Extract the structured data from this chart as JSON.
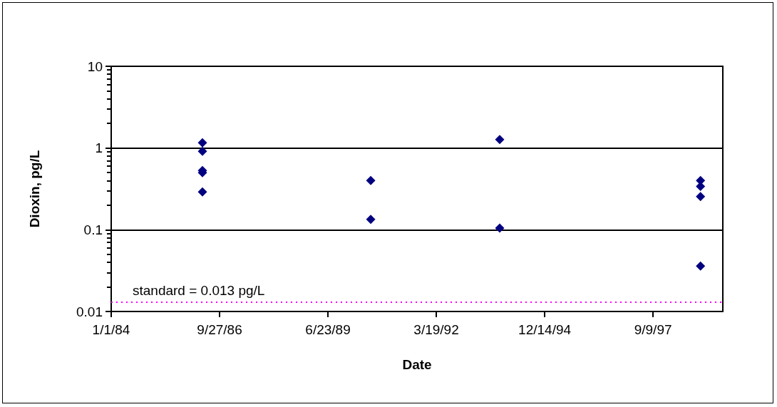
{
  "chart_data": {
    "type": "scatter",
    "xlabel": "Date",
    "ylabel": "Dioxin, pg/L",
    "x": [
      "1986-04-22",
      "1986-04-22",
      "1986-04-22",
      "1986-04-22",
      "1986-04-22",
      "1990-07-23",
      "1990-07-23",
      "1993-10-25",
      "1993-10-25",
      "1998-11-21",
      "1998-11-21",
      "1998-11-21",
      "1998-11-21"
    ],
    "values": [
      1.16,
      0.91,
      0.53,
      0.5,
      0.29,
      0.4,
      0.134,
      1.27,
      0.105,
      0.4,
      0.34,
      0.255,
      0.036
    ],
    "color": "#000080",
    "marker": "diamond",
    "xlim": [
      "1984-01-01",
      "1999-06-15"
    ],
    "xticks": [
      {
        "value": "1984-01-01",
        "label": "1/1/84"
      },
      {
        "value": "1986-09-27",
        "label": "9/27/86"
      },
      {
        "value": "1989-06-23",
        "label": "6/23/89"
      },
      {
        "value": "1992-03-19",
        "label": "3/19/92"
      },
      {
        "value": "1994-12-14",
        "label": "12/14/94"
      },
      {
        "value": "1997-09-09",
        "label": "9/9/97"
      }
    ],
    "ylim": [
      0.01,
      10
    ],
    "yticks": [
      0.01,
      0.1,
      1,
      10
    ],
    "log": "y",
    "grid": "y",
    "ref_lines": [
      {
        "axis": "y",
        "value": 0.013,
        "label": "standard = 0.013 pg/L",
        "color": "#ff00ff",
        "line_style": "dotted"
      }
    ]
  }
}
